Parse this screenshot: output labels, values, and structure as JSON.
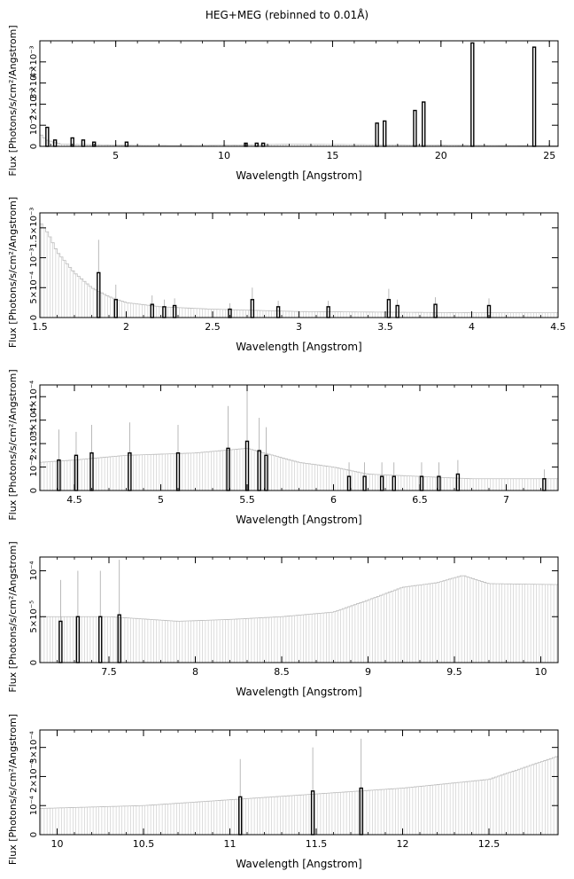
{
  "title": "HEG+MEG (rebinned to 0.01Å)",
  "chart_data": [
    {
      "type": "bar",
      "xlabel": "Wavelength [Angstrom]",
      "ylabel": "Flux [Photons/s/cm²/Angstrom]",
      "xlim": [
        1.5,
        25.4
      ],
      "ylim": [
        0,
        0.005
      ],
      "xticks": [
        5,
        10,
        15,
        20,
        25
      ],
      "xtick_labels": [
        "5",
        "10",
        "15",
        "20",
        "25"
      ],
      "yticks": [
        0,
        0.001,
        0.002,
        0.003,
        0.004
      ],
      "ytick_labels": [
        "0",
        "10⁻³",
        "2×10⁻³",
        "3×10⁻³",
        "4×10⁻³"
      ],
      "continuum": [
        [
          1.5,
          0.0006
        ],
        [
          1.8,
          0.0003
        ],
        [
          2.5,
          0.0001
        ],
        [
          4,
          8e-05
        ],
        [
          6,
          5e-05
        ],
        [
          8,
          4e-05
        ],
        [
          10,
          6e-05
        ],
        [
          13,
          0.0001
        ],
        [
          25.4,
          3e-05
        ]
      ],
      "lines": [
        {
          "x": 1.84,
          "y": 0.0009
        },
        {
          "x": 2.2,
          "y": 0.0003
        },
        {
          "x": 3.0,
          "y": 0.0004
        },
        {
          "x": 3.5,
          "y": 0.0003
        },
        {
          "x": 4.0,
          "y": 0.0002
        },
        {
          "x": 5.5,
          "y": 0.0002
        },
        {
          "x": 11.0,
          "y": 0.00015
        },
        {
          "x": 11.5,
          "y": 0.00015
        },
        {
          "x": 11.8,
          "y": 0.00015
        },
        {
          "x": 17.05,
          "y": 0.0011
        },
        {
          "x": 17.4,
          "y": 0.0012
        },
        {
          "x": 18.8,
          "y": 0.0017
        },
        {
          "x": 19.2,
          "y": 0.0021
        },
        {
          "x": 21.45,
          "y": 0.0049
        },
        {
          "x": 24.3,
          "y": 0.0047
        }
      ]
    },
    {
      "type": "bar",
      "xlabel": "Wavelength [Angstrom]",
      "ylabel": "Flux [Photons/s/cm²/Angstrom]",
      "xlim": [
        1.5,
        4.5
      ],
      "ylim": [
        0,
        0.00175
      ],
      "xticks": [
        1.5,
        2,
        2.5,
        3,
        3.5,
        4,
        4.5
      ],
      "xtick_labels": [
        "1.5",
        "2",
        "2.5",
        "3",
        "3.5",
        "4",
        "4.5"
      ],
      "yticks": [
        0,
        0.0005,
        0.001,
        0.0015
      ],
      "ytick_labels": [
        "0",
        "5×10⁻⁴",
        "10⁻³",
        "1.5×10⁻³"
      ],
      "continuum": [
        [
          1.5,
          0.0016
        ],
        [
          1.55,
          0.0014
        ],
        [
          1.6,
          0.0011
        ],
        [
          1.7,
          0.00075
        ],
        [
          1.8,
          0.0005
        ],
        [
          1.9,
          0.00035
        ],
        [
          2.0,
          0.00025
        ],
        [
          2.2,
          0.00018
        ],
        [
          2.5,
          0.00014
        ],
        [
          3.0,
          0.0001
        ],
        [
          3.5,
          9e-05
        ],
        [
          4.0,
          8e-05
        ],
        [
          4.5,
          8e-05
        ]
      ],
      "lines": [
        {
          "x": 1.84,
          "y": 0.00075,
          "err": 0.00055
        },
        {
          "x": 1.94,
          "y": 0.0003,
          "err": 0.00025
        },
        {
          "x": 2.15,
          "y": 0.00022,
          "err": 0.00015
        },
        {
          "x": 2.22,
          "y": 0.00018,
          "err": 0.00012
        },
        {
          "x": 2.28,
          "y": 0.0002,
          "err": 0.00012
        },
        {
          "x": 2.6,
          "y": 0.00014,
          "err": 0.0001
        },
        {
          "x": 2.73,
          "y": 0.0003,
          "err": 0.0002
        },
        {
          "x": 2.88,
          "y": 0.00018,
          "err": 0.0001
        },
        {
          "x": 3.17,
          "y": 0.00018,
          "err": 0.0001
        },
        {
          "x": 3.52,
          "y": 0.0003,
          "err": 0.00018
        },
        {
          "x": 3.57,
          "y": 0.0002,
          "err": 0.0001
        },
        {
          "x": 3.79,
          "y": 0.00022,
          "err": 0.00012
        },
        {
          "x": 4.1,
          "y": 0.0002,
          "err": 0.00012
        }
      ]
    },
    {
      "type": "bar",
      "xlabel": "Wavelength [Angstrom]",
      "ylabel": "Flux [Photons/s/cm²/Angstrom]",
      "xlim": [
        4.3,
        7.3
      ],
      "ylim": [
        0,
        0.00045
      ],
      "xticks": [
        4.5,
        5,
        5.5,
        6,
        6.5,
        7
      ],
      "xtick_labels": [
        "4.5",
        "5",
        "5.5",
        "6",
        "6.5",
        "7"
      ],
      "yticks": [
        0,
        0.0001,
        0.0002,
        0.0003,
        0.0004
      ],
      "ytick_labels": [
        "0",
        "10⁻⁴",
        "2×10⁻⁴",
        "3×10⁻⁴",
        "4×10⁻⁴"
      ],
      "continuum": [
        [
          4.3,
          0.00012
        ],
        [
          4.5,
          0.00013
        ],
        [
          4.8,
          0.00015
        ],
        [
          5.2,
          0.00016
        ],
        [
          5.5,
          0.00018
        ],
        [
          5.65,
          0.00015
        ],
        [
          5.8,
          0.00012
        ],
        [
          6.0,
          0.0001
        ],
        [
          6.2,
          7e-05
        ],
        [
          6.5,
          6e-05
        ],
        [
          6.8,
          5e-05
        ],
        [
          7.3,
          5e-05
        ]
      ],
      "lines": [
        {
          "x": 4.41,
          "y": 0.00013,
          "err": 0.00013
        },
        {
          "x": 4.51,
          "y": 0.00015,
          "err": 0.0001
        },
        {
          "x": 4.6,
          "y": 0.00016,
          "err": 0.00012
        },
        {
          "x": 4.82,
          "y": 0.00016,
          "err": 0.00013
        },
        {
          "x": 5.1,
          "y": 0.00016,
          "err": 0.00012
        },
        {
          "x": 5.39,
          "y": 0.00018,
          "err": 0.00018
        },
        {
          "x": 5.5,
          "y": 0.00021,
          "err": 0.00022
        },
        {
          "x": 5.57,
          "y": 0.00017,
          "err": 0.00014
        },
        {
          "x": 5.61,
          "y": 0.00015,
          "err": 0.00012
        },
        {
          "x": 6.09,
          "y": 6e-05,
          "err": 6e-05
        },
        {
          "x": 6.18,
          "y": 6e-05,
          "err": 6e-05
        },
        {
          "x": 6.28,
          "y": 6e-05,
          "err": 6e-05
        },
        {
          "x": 6.35,
          "y": 6e-05,
          "err": 6e-05
        },
        {
          "x": 6.51,
          "y": 6e-05,
          "err": 6e-05
        },
        {
          "x": 6.61,
          "y": 6e-05,
          "err": 6e-05
        },
        {
          "x": 6.72,
          "y": 7e-05,
          "err": 6e-05
        },
        {
          "x": 7.22,
          "y": 5e-05,
          "err": 4e-05
        }
      ]
    },
    {
      "type": "bar",
      "xlabel": "Wavelength [Angstrom]",
      "ylabel": "Flux [Photons/s/cm²/Angstrom]",
      "xlim": [
        7.1,
        10.1
      ],
      "ylim": [
        0,
        0.000115
      ],
      "xticks": [
        7.5,
        8,
        8.5,
        9,
        9.5,
        10
      ],
      "xtick_labels": [
        "7.5",
        "8",
        "8.5",
        "9",
        "9.5",
        "10"
      ],
      "yticks": [
        0,
        5e-05,
        0.0001
      ],
      "ytick_labels": [
        "0",
        "5×10⁻⁵",
        "10⁻⁴"
      ],
      "continuum": [
        [
          7.1,
          5e-05
        ],
        [
          7.5,
          5e-05
        ],
        [
          7.9,
          4.5e-05
        ],
        [
          8.2,
          4.7e-05
        ],
        [
          8.5,
          5e-05
        ],
        [
          8.8,
          5.5e-05
        ],
        [
          9.0,
          6.8e-05
        ],
        [
          9.2,
          8.2e-05
        ],
        [
          9.4,
          8.7e-05
        ],
        [
          9.55,
          9.5e-05
        ],
        [
          9.7,
          8.6e-05
        ],
        [
          10.1,
          8.5e-05
        ]
      ],
      "lines": [
        {
          "x": 7.22,
          "y": 4.5e-05,
          "err": 4.5e-05
        },
        {
          "x": 7.32,
          "y": 5e-05,
          "err": 5e-05
        },
        {
          "x": 7.45,
          "y": 5e-05,
          "err": 5e-05
        },
        {
          "x": 7.56,
          "y": 5.2e-05,
          "err": 6e-05
        }
      ]
    },
    {
      "type": "bar",
      "xlabel": "Wavelength [Angstrom]",
      "ylabel": "Flux [Photons/s/cm²/Angstrom]",
      "xlim": [
        9.9,
        12.9
      ],
      "ylim": [
        0,
        0.00036
      ],
      "xticks": [
        10,
        10.5,
        11,
        11.5,
        12,
        12.5
      ],
      "xtick_labels": [
        "10",
        "10.5",
        "11",
        "11.5",
        "12",
        "12.5"
      ],
      "yticks": [
        0,
        0.0001,
        0.0002,
        0.0003
      ],
      "ytick_labels": [
        "0",
        "10⁻⁴",
        "2×10⁻⁴",
        "3×10⁻⁴"
      ],
      "continuum": [
        [
          9.9,
          9e-05
        ],
        [
          10.5,
          0.0001
        ],
        [
          11.0,
          0.00012
        ],
        [
          11.5,
          0.00014
        ],
        [
          12.0,
          0.00016
        ],
        [
          12.5,
          0.00019
        ],
        [
          12.8,
          0.00025
        ],
        [
          12.9,
          0.00027
        ]
      ],
      "lines": [
        {
          "x": 11.06,
          "y": 0.00013,
          "err": 0.00013
        },
        {
          "x": 11.48,
          "y": 0.00015,
          "err": 0.00015
        },
        {
          "x": 11.76,
          "y": 0.00016,
          "err": 0.00017
        }
      ]
    }
  ]
}
